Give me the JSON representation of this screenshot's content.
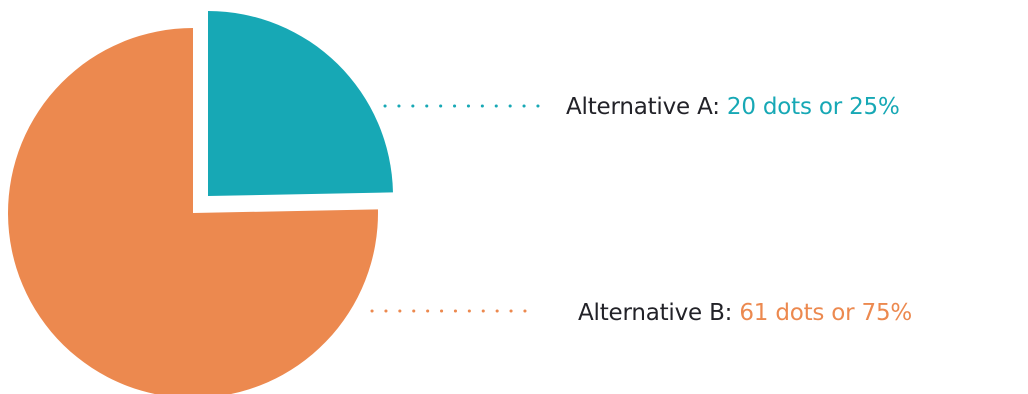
{
  "chart_data": {
    "type": "pie",
    "exploded": "Alternative A",
    "slices": [
      {
        "name": "Alternative A",
        "value": 20,
        "percent": 25,
        "color": "#17a8b5",
        "label_prefix": "Alternative A: ",
        "label_value": "20 dots or 25%"
      },
      {
        "name": "Alternative B",
        "value": 61,
        "percent": 75,
        "color": "#ec894f",
        "label_prefix": "Alternative B: ",
        "label_value": "61 dots or 75%"
      }
    ],
    "leader_line_style": "dotted",
    "text_color": "#222228"
  }
}
